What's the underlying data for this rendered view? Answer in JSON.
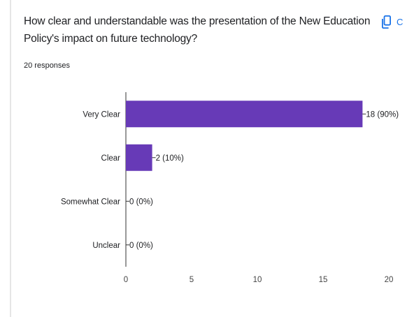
{
  "question": {
    "title": "How clear and understandable was the presentation of the New Education Policy's impact on future technology?",
    "responses": "20 responses",
    "copy_label": "C"
  },
  "colors": {
    "bar": "#673ab7",
    "accent": "#1a73e8"
  },
  "chart_data": {
    "type": "bar",
    "orientation": "horizontal",
    "categories": [
      "Very Clear",
      "Clear",
      "Somewhat Clear",
      "Unclear"
    ],
    "values": [
      18,
      2,
      0,
      0
    ],
    "data_labels": [
      "18 (90%)",
      "2 (10%)",
      "0 (0%)",
      "0 (0%)"
    ],
    "xlim": [
      0,
      20
    ],
    "x_ticks": [
      "0",
      "5",
      "10",
      "15",
      "20"
    ],
    "title": "",
    "xlabel": "",
    "ylabel": "",
    "grid": false
  }
}
